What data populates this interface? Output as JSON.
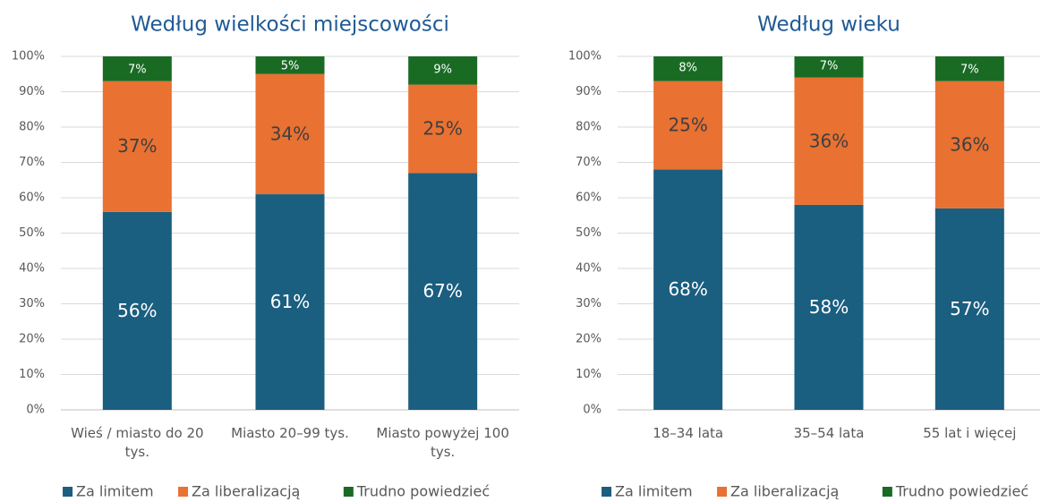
{
  "chart_data": [
    {
      "type": "bar",
      "stacked": true,
      "title": "Według wielkości miejscowości",
      "categories": [
        "Wieś / miasto do 20 tys.",
        "Miasto 20–99 tys.",
        "Miasto powyżej 100 tys."
      ],
      "series": [
        {
          "name": "Za limitem",
          "color": "#1a5e80",
          "values": [
            56,
            61,
            67
          ],
          "value_labels": [
            "56%",
            "61%",
            "67%"
          ]
        },
        {
          "name": "Za liberalizacją",
          "color": "#e97132",
          "values": [
            37,
            34,
            25
          ],
          "value_labels": [
            "37%",
            "34%",
            "25%"
          ]
        },
        {
          "name": "Trudno powiedzieć",
          "color": "#196b24",
          "values": [
            7,
            5,
            9
          ],
          "value_labels": [
            "7%",
            "5%",
            "9%"
          ]
        }
      ],
      "ylim": [
        0,
        100
      ],
      "yticks": [
        {
          "value": 0,
          "label": "0%"
        },
        {
          "value": 10,
          "label": "10%"
        },
        {
          "value": 20,
          "label": "20%"
        },
        {
          "value": 30,
          "label": "30%"
        },
        {
          "value": 40,
          "label": "40%"
        },
        {
          "value": 50,
          "label": "50%"
        },
        {
          "value": 60,
          "label": "60%"
        },
        {
          "value": 70,
          "label": "70%"
        },
        {
          "value": 80,
          "label": "80%"
        },
        {
          "value": 90,
          "label": "90%"
        },
        {
          "value": 100,
          "label": "100%"
        }
      ],
      "grid": true,
      "legend": "bottom"
    },
    {
      "type": "bar",
      "stacked": true,
      "title": "Według wieku",
      "categories": [
        "18–34 lata",
        "35–54 lata",
        "55 lat i więcej"
      ],
      "series": [
        {
          "name": "Za limitem",
          "color": "#1a5e80",
          "values": [
            68,
            58,
            57
          ],
          "value_labels": [
            "68%",
            "58%",
            "57%"
          ]
        },
        {
          "name": "Za liberalizacją",
          "color": "#e97132",
          "values": [
            25,
            36,
            36
          ],
          "value_labels": [
            "25%",
            "36%",
            "36%"
          ]
        },
        {
          "name": "Trudno powiedzieć",
          "color": "#196b24",
          "values": [
            8,
            7,
            7
          ],
          "value_labels": [
            "8%",
            "7%",
            "7%"
          ]
        }
      ],
      "ylim": [
        0,
        100
      ],
      "yticks": [
        {
          "value": 0,
          "label": "0%"
        },
        {
          "value": 10,
          "label": "10%"
        },
        {
          "value": 20,
          "label": "20%"
        },
        {
          "value": 30,
          "label": "30%"
        },
        {
          "value": 40,
          "label": "40%"
        },
        {
          "value": 50,
          "label": "50%"
        },
        {
          "value": 60,
          "label": "60%"
        },
        {
          "value": 70,
          "label": "70%"
        },
        {
          "value": 80,
          "label": "80%"
        },
        {
          "value": 90,
          "label": "90%"
        },
        {
          "value": 100,
          "label": "100%"
        }
      ],
      "grid": true,
      "legend": "bottom"
    }
  ]
}
